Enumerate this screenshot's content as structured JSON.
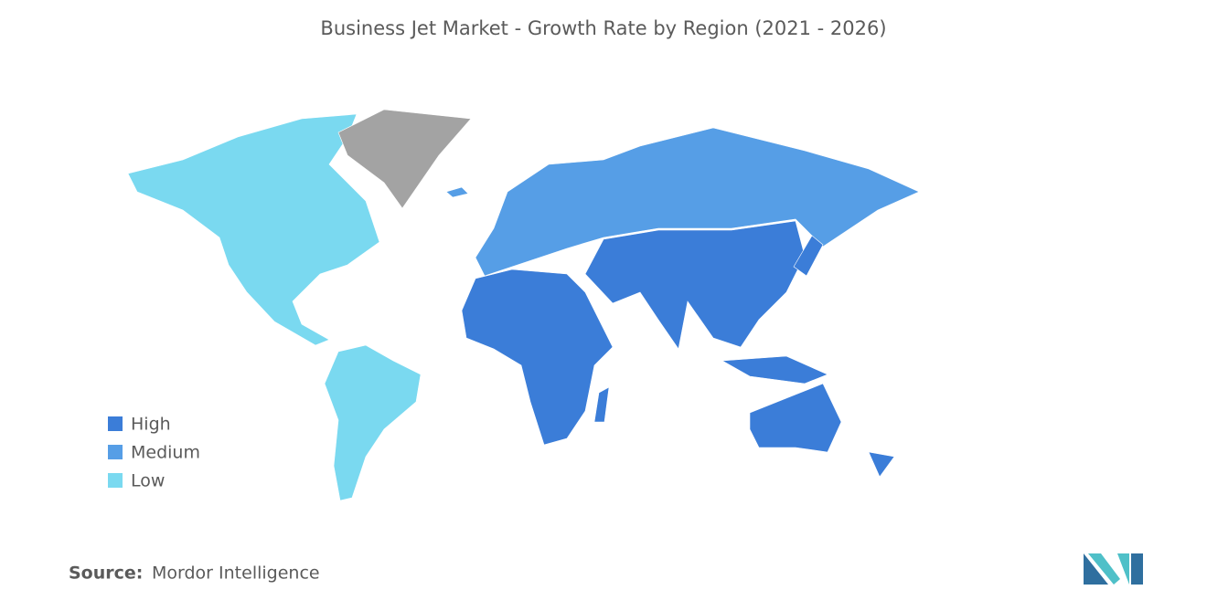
{
  "title": "Business Jet Market - Growth Rate by Region (2021 - 2026)",
  "legend": [
    {
      "label": "High",
      "color": "#3b7dd8"
    },
    {
      "label": "Medium",
      "color": "#569ee6"
    },
    {
      "label": "Low",
      "color": "#7ad9f0"
    }
  ],
  "source": {
    "label": "Source:",
    "value": "Mordor Intelligence"
  }
}
